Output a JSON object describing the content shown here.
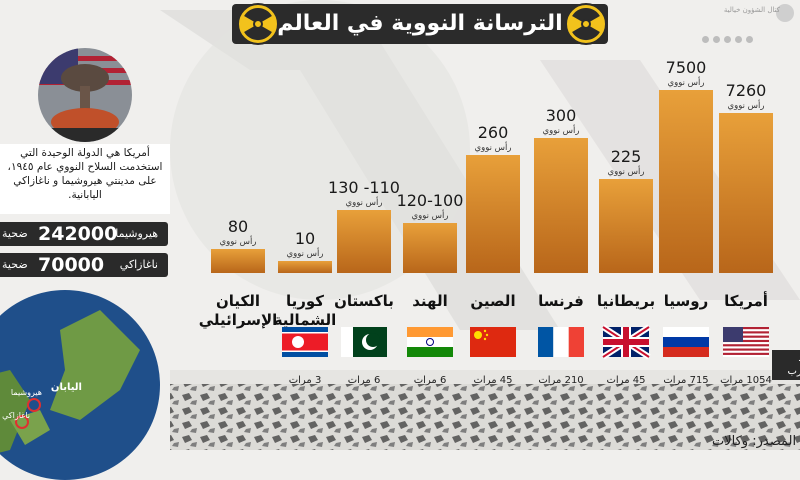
{
  "title": "الترسانة النووية في العالم",
  "brand": {
    "name": "كتال الشؤون خيالية",
    "handle": "#"
  },
  "info_text": "أمريكا هي الدولة الوحيدة التي استخدمت السلاح النووي عام ١٩٤٥، على مدينتي هيروشيما و ناغازاكي اليابانية.",
  "stats": [
    {
      "city": "هيروشيما",
      "number": "242000",
      "unit": "ضحية"
    },
    {
      "city": "ناغازاكي",
      "number": "70000",
      "unit": "ضحية"
    }
  ],
  "map_labels": {
    "japan": "اليابان",
    "hiroshima": "هيروشيما",
    "nagasaki": "ناغازاكي"
  },
  "tests_label": "عدد تجارب",
  "source": "المصدر: وكالات",
  "colors": {
    "bar_top": "#e8a03a",
    "bar_bottom": "#b8661a",
    "title_bg": "#2b2b2b",
    "radiation": "#f2c21c"
  },
  "chart_data": {
    "type": "bar",
    "unit_label": "رأس نووي",
    "categories": [
      "أمريكا",
      "روسيا",
      "بريطانيا",
      "فرنسا",
      "الصين",
      "الهند",
      "باكستان",
      "كوريا الشمالية",
      "الكيان الإسرائيلي"
    ],
    "values": [
      7260,
      7500,
      225,
      300,
      260,
      110,
      120,
      10,
      80
    ],
    "value_labels": [
      "7260",
      "7500",
      "225",
      "300",
      "260",
      "120-100",
      "130 -110",
      "10",
      "80"
    ],
    "tests": [
      "1054 مرات",
      "715 مرات",
      "45 مرات",
      "210 مرات",
      "45 مرات",
      "6 مرات",
      "6 مرات",
      "3 مرات",
      ""
    ],
    "flags": [
      "usa-flag-icon",
      "russia-flag-icon",
      "uk-flag-icon",
      "france-flag-icon",
      "china-flag-icon",
      "india-flag-icon",
      "pakistan-flag-icon",
      "north-korea-flag-icon",
      ""
    ]
  }
}
